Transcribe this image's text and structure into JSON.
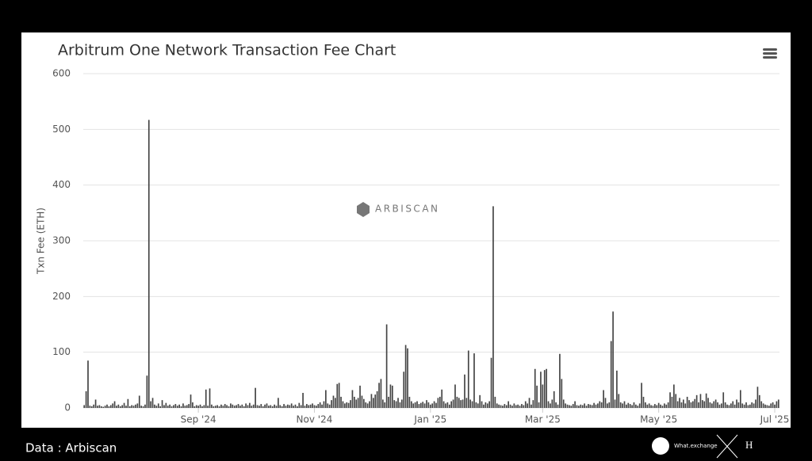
{
  "chart_data": {
    "type": "bar",
    "title": "Arbitrum One Network Transaction Fee Chart",
    "y_label": "Txn Fee (ETH)",
    "watermark": "ARBISCAN",
    "color": "#444444",
    "grid": true,
    "ylim": [
      0,
      600
    ],
    "yticks": [
      0,
      100,
      200,
      300,
      400,
      500,
      600
    ],
    "categories": [
      null,
      null,
      null,
      null,
      null,
      null,
      null,
      null,
      null,
      null,
      null,
      null,
      null,
      null,
      null,
      null,
      null,
      null,
      null,
      null,
      null,
      null,
      null,
      null,
      null,
      null,
      null,
      null,
      null,
      null,
      null,
      null,
      null,
      null,
      null,
      null,
      null,
      null,
      null,
      null,
      null,
      null,
      null,
      null,
      null,
      null,
      null,
      null,
      null,
      null,
      null,
      null,
      null,
      null,
      null,
      null,
      null,
      null,
      null,
      null,
      "Sep '24",
      null,
      null,
      null,
      null,
      null,
      null,
      null,
      null,
      null,
      null,
      null,
      null,
      null,
      null,
      null,
      null,
      null,
      null,
      null,
      null,
      null,
      null,
      null,
      null,
      null,
      null,
      null,
      null,
      null,
      null,
      null,
      null,
      null,
      null,
      null,
      null,
      null,
      null,
      null,
      null,
      null,
      null,
      null,
      null,
      null,
      null,
      null,
      null,
      null,
      null,
      null,
      null,
      null,
      null,
      null,
      null,
      null,
      null,
      null,
      null,
      "Nov '24",
      null,
      null,
      null,
      null,
      null,
      null,
      null,
      null,
      null,
      null,
      null,
      null,
      null,
      null,
      null,
      null,
      null,
      null,
      null,
      null,
      null,
      null,
      null,
      null,
      null,
      null,
      null,
      null,
      null,
      null,
      null,
      null,
      null,
      null,
      null,
      null,
      null,
      null,
      null,
      null,
      null,
      null,
      null,
      null,
      null,
      null,
      null,
      null,
      null,
      null,
      null,
      null,
      null,
      null,
      null,
      null,
      null,
      null,
      null,
      null,
      "Jan '25",
      null,
      null,
      null,
      null,
      null,
      null,
      null,
      null,
      null,
      null,
      null,
      null,
      null,
      null,
      null,
      null,
      null,
      null,
      null,
      null,
      null,
      null,
      null,
      null,
      null,
      null,
      null,
      null,
      null,
      null,
      null,
      null,
      null,
      null,
      null,
      null,
      null,
      null,
      null,
      null,
      null,
      null,
      null,
      null,
      null,
      null,
      null,
      null,
      null,
      null,
      null,
      null,
      null,
      null,
      null,
      null,
      null,
      null,
      "Mar '25",
      null,
      null,
      null,
      null,
      null,
      null,
      null,
      null,
      null,
      null,
      null,
      null,
      null,
      null,
      null,
      null,
      null,
      null,
      null,
      null,
      null,
      null,
      null,
      null,
      null,
      null,
      null,
      null,
      null,
      null,
      null,
      null,
      null,
      null,
      null,
      null,
      null,
      null,
      null,
      null,
      null,
      null,
      null,
      null,
      null,
      null,
      null,
      null,
      null,
      null,
      null,
      null,
      null,
      null,
      null,
      null,
      null,
      null,
      null,
      null,
      "May '25",
      null,
      null,
      null,
      null,
      null,
      null,
      null,
      null,
      null,
      null,
      null,
      null,
      null,
      null,
      null,
      null,
      null,
      null,
      null,
      null,
      null,
      null,
      null,
      null,
      null,
      null,
      null,
      null,
      null,
      null,
      null,
      null,
      null,
      null,
      null,
      null,
      null,
      null,
      null,
      null,
      null,
      null,
      null,
      null,
      null,
      null,
      null,
      null,
      null,
      null,
      null,
      null,
      null,
      null,
      null,
      null,
      null,
      null,
      null,
      null,
      "Jul '25",
      null,
      null
    ],
    "values": [
      5,
      30,
      85,
      4,
      3,
      6,
      15,
      4,
      5,
      3,
      2,
      4,
      6,
      3,
      5,
      8,
      12,
      4,
      6,
      3,
      5,
      9,
      4,
      16,
      3,
      5,
      4,
      6,
      8,
      22,
      4,
      3,
      6,
      58,
      517,
      12,
      18,
      6,
      4,
      8,
      3,
      14,
      5,
      9,
      4,
      6,
      3,
      5,
      7,
      4,
      6,
      3,
      8,
      4,
      5,
      7,
      24,
      10,
      3,
      5,
      4,
      6,
      3,
      5,
      33,
      4,
      35,
      6,
      3,
      4,
      5,
      3,
      6,
      4,
      7,
      5,
      3,
      8,
      6,
      4,
      5,
      7,
      4,
      6,
      3,
      8,
      5,
      9,
      4,
      6,
      36,
      5,
      4,
      7,
      3,
      6,
      8,
      4,
      5,
      3,
      6,
      4,
      18,
      5,
      3,
      7,
      4,
      6,
      5,
      8,
      4,
      6,
      3,
      9,
      5,
      27,
      4,
      7,
      5,
      6,
      8,
      5,
      4,
      7,
      10,
      6,
      12,
      32,
      8,
      6,
      14,
      22,
      18,
      43,
      45,
      20,
      12,
      8,
      10,
      9,
      14,
      32,
      20,
      15,
      18,
      40,
      22,
      16,
      10,
      8,
      12,
      25,
      18,
      24,
      30,
      45,
      52,
      15,
      10,
      150,
      20,
      42,
      40,
      14,
      12,
      18,
      10,
      15,
      65,
      113,
      107,
      20,
      12,
      8,
      10,
      12,
      7,
      9,
      11,
      8,
      14,
      10,
      6,
      8,
      12,
      9,
      18,
      20,
      33,
      12,
      8,
      10,
      6,
      12,
      15,
      42,
      20,
      18,
      14,
      15,
      60,
      18,
      103,
      15,
      12,
      98,
      10,
      8,
      23,
      12,
      6,
      10,
      8,
      12,
      90,
      362,
      20,
      8,
      6,
      5,
      4,
      7,
      5,
      12,
      6,
      4,
      8,
      5,
      6,
      4,
      7,
      5,
      12,
      8,
      18,
      6,
      14,
      70,
      40,
      10,
      65,
      42,
      68,
      70,
      12,
      8,
      15,
      30,
      10,
      6,
      97,
      52,
      15,
      8,
      6,
      5,
      4,
      7,
      12,
      5,
      4,
      6,
      5,
      8,
      4,
      7,
      6,
      5,
      9,
      6,
      8,
      12,
      10,
      32,
      18,
      8,
      10,
      120,
      173,
      15,
      67,
      25,
      10,
      8,
      12,
      6,
      9,
      7,
      5,
      10,
      6,
      4,
      8,
      45,
      20,
      10,
      6,
      8,
      5,
      4,
      7,
      5,
      9,
      6,
      4,
      8,
      6,
      10,
      28,
      20,
      42,
      25,
      12,
      18,
      10,
      15,
      8,
      20,
      14,
      10,
      12,
      16,
      23,
      10,
      25,
      14,
      12,
      26,
      18,
      10,
      8,
      12,
      15,
      10,
      6,
      8,
      28,
      10,
      6,
      5,
      8,
      12,
      6,
      15,
      10,
      32,
      8,
      6,
      10,
      5,
      6,
      10,
      8,
      15,
      38,
      23,
      12,
      8,
      6,
      5,
      4,
      8,
      10,
      6,
      12,
      15
    ]
  },
  "footer": {
    "source": "Data : Arbiscan",
    "brand": "What.exchange"
  }
}
